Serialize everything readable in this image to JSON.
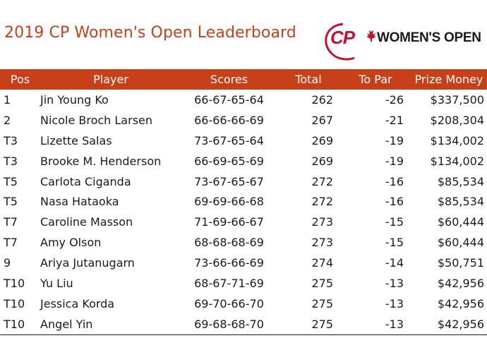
{
  "title": "2019 CP Women's Open Leaderboard",
  "logo": {
    "cp_text": "CP",
    "wordmark": "WOMEN'S OPEN",
    "maple_leaf_color": "#c8102e",
    "brand_color": "#c8102e"
  },
  "accent_color": "#c8401a",
  "table": {
    "headers": {
      "pos": "Pos",
      "player": "Player",
      "scores": "Scores",
      "total": "Total",
      "to_par": "To Par",
      "prize": "Prize Money"
    },
    "rows": [
      {
        "pos": "1",
        "player": "Jin Young Ko",
        "scores": "66-67-65-64",
        "total": "262",
        "to_par": "-26",
        "prize": "$337,500"
      },
      {
        "pos": "2",
        "player": "Nicole Broch Larsen",
        "scores": "66-66-66-69",
        "total": "267",
        "to_par": "-21",
        "prize": "$208,304"
      },
      {
        "pos": "T3",
        "player": "Lizette Salas",
        "scores": "73-67-65-64",
        "total": "269",
        "to_par": "-19",
        "prize": "$134,002"
      },
      {
        "pos": "T3",
        "player": "Brooke M. Henderson",
        "scores": "66-69-65-69",
        "total": "269",
        "to_par": "-19",
        "prize": "$134,002"
      },
      {
        "pos": "T5",
        "player": "Carlota Ciganda",
        "scores": "73-67-65-67",
        "total": "272",
        "to_par": "-16",
        "prize": "$85,534"
      },
      {
        "pos": "T5",
        "player": "Nasa Hataoka",
        "scores": "69-69-66-68",
        "total": "272",
        "to_par": "-16",
        "prize": "$85,534"
      },
      {
        "pos": "T7",
        "player": "Caroline Masson",
        "scores": "71-69-66-67",
        "total": "273",
        "to_par": "-15",
        "prize": "$60,444"
      },
      {
        "pos": "T7",
        "player": "Amy Olson",
        "scores": "68-68-68-69",
        "total": "273",
        "to_par": "-15",
        "prize": "$60,444"
      },
      {
        "pos": "9",
        "player": "Ariya Jutanugarn",
        "scores": "73-66-66-69",
        "total": "274",
        "to_par": "-14",
        "prize": "$50,751"
      },
      {
        "pos": "T10",
        "player": "Yu Liu",
        "scores": "68-67-71-69",
        "total": "275",
        "to_par": "-13",
        "prize": "$42,956"
      },
      {
        "pos": "T10",
        "player": "Jessica Korda",
        "scores": "69-70-66-70",
        "total": "275",
        "to_par": "-13",
        "prize": "$42,956"
      },
      {
        "pos": "T10",
        "player": "Angel Yin",
        "scores": "69-68-68-70",
        "total": "275",
        "to_par": "-13",
        "prize": "$42,956"
      }
    ]
  }
}
